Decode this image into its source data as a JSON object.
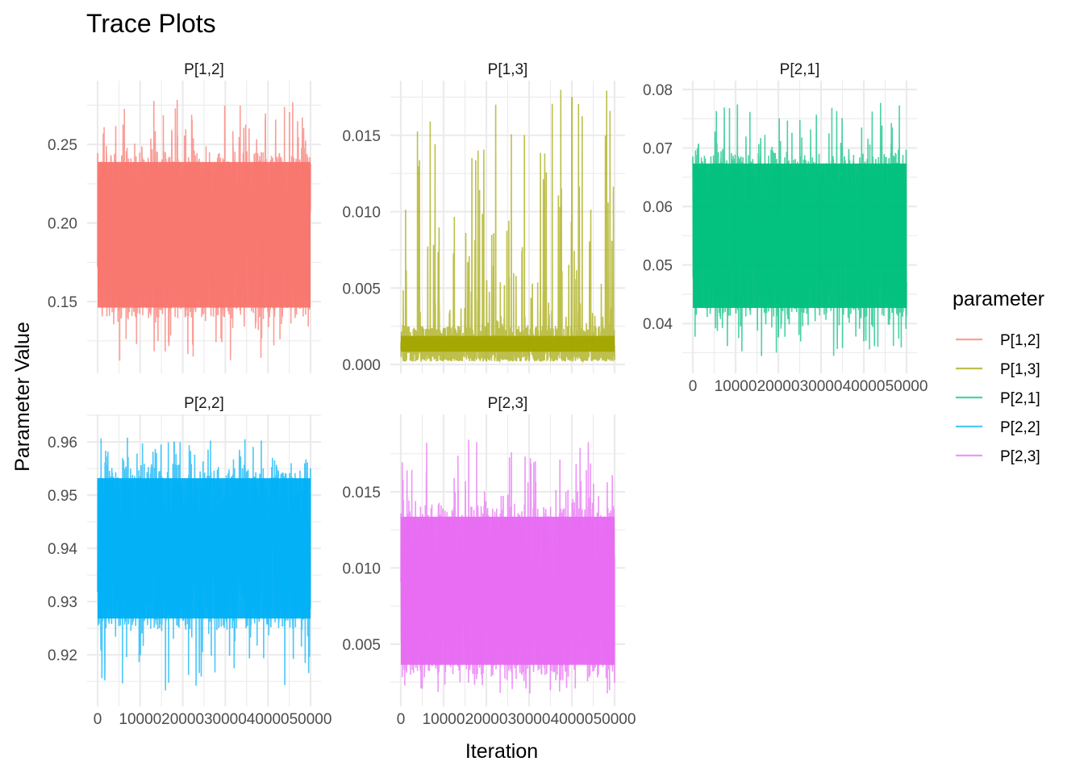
{
  "chart_data": {
    "type": "line",
    "title": "Trace Plots",
    "xlabel": "Iteration",
    "ylabel": "Parameter Value",
    "legend": {
      "title": "parameter",
      "placement": "right",
      "entries": [
        "P[1,2]",
        "P[1,3]",
        "P[2,1]",
        "P[2,2]",
        "P[2,3]"
      ]
    },
    "grid": true,
    "facets": [
      {
        "name": "P[1,2]",
        "color": "#F8766D",
        "xlim": [
          0,
          50000
        ],
        "ylim": [
          0.11,
          0.285
        ],
        "x_ticks": [
          0,
          10000,
          20000,
          30000,
          40000,
          50000
        ],
        "x_tick_labels": [
          "0",
          "10000",
          "20000",
          "30000",
          "40000",
          "50000"
        ],
        "y_ticks": [
          0.15,
          0.2,
          0.25
        ],
        "y_tick_labels": [
          "0.15",
          "0.20",
          "0.25"
        ],
        "dense_low": 0.14,
        "dense_high": 0.245,
        "spike_min": 0.112,
        "spike_max": 0.284,
        "center": 0.195,
        "skew": "none",
        "show_x_labels": false
      },
      {
        "name": "P[1,3]",
        "color": "#A3A500",
        "xlim": [
          0,
          50000
        ],
        "ylim": [
          0.0,
          0.018
        ],
        "x_ticks": [
          0,
          10000,
          20000,
          30000,
          40000,
          50000
        ],
        "x_tick_labels": [
          "0",
          "10000",
          "20000",
          "30000",
          "40000",
          "50000"
        ],
        "y_ticks": [
          0.0,
          0.005,
          0.01,
          0.015
        ],
        "y_tick_labels": [
          "0.000",
          "0.005",
          "0.010",
          "0.015"
        ],
        "dense_low": 0.0002,
        "dense_high": 0.0025,
        "spike_min": 0.0001,
        "spike_max": 0.018,
        "center": 0.0015,
        "skew": "right",
        "show_x_labels": false
      },
      {
        "name": "P[2,1]",
        "color": "#00BF7D",
        "xlim": [
          0,
          50000
        ],
        "ylim": [
          0.033,
          0.08
        ],
        "x_ticks": [
          0,
          10000,
          20000,
          30000,
          40000,
          50000
        ],
        "x_tick_labels": [
          "0",
          "10000",
          "20000",
          "30000",
          "40000",
          "50000"
        ],
        "y_ticks": [
          0.04,
          0.05,
          0.06,
          0.07,
          0.08
        ],
        "y_tick_labels": [
          "0.04",
          "0.05",
          "0.06",
          "0.07",
          "0.08"
        ],
        "dense_low": 0.041,
        "dense_high": 0.069,
        "spike_min": 0.034,
        "spike_max": 0.078,
        "center": 0.055,
        "skew": "none",
        "show_x_labels": true
      },
      {
        "name": "P[2,2]",
        "color": "#00B0F6",
        "xlim": [
          0,
          50000
        ],
        "ylim": [
          0.912,
          0.9635
        ],
        "x_ticks": [
          0,
          10000,
          20000,
          30000,
          40000,
          50000
        ],
        "x_tick_labels": [
          "0",
          "10000",
          "20000",
          "30000",
          "40000",
          "50000"
        ],
        "y_ticks": [
          0.92,
          0.93,
          0.94,
          0.95,
          0.96
        ],
        "y_tick_labels": [
          "0.92",
          "0.93",
          "0.94",
          "0.95",
          "0.96"
        ],
        "dense_low": 0.925,
        "dense_high": 0.955,
        "spike_min": 0.913,
        "spike_max": 0.961,
        "center": 0.94,
        "skew": "none",
        "show_x_labels": true
      },
      {
        "name": "P[2,3]",
        "color": "#E76BF3",
        "xlim": [
          0,
          50000
        ],
        "ylim": [
          0.0015,
          0.0195
        ],
        "x_ticks": [
          0,
          10000,
          20000,
          30000,
          40000,
          50000
        ],
        "x_tick_labels": [
          "0",
          "10000",
          "20000",
          "30000",
          "40000",
          "50000"
        ],
        "y_ticks": [
          0.005,
          0.01,
          0.015
        ],
        "y_tick_labels": [
          "0.005",
          "0.010",
          "0.015"
        ],
        "dense_low": 0.003,
        "dense_high": 0.014,
        "spike_min": 0.0017,
        "spike_max": 0.0185,
        "center": 0.0085,
        "skew": "none",
        "show_x_labels": true
      }
    ]
  }
}
